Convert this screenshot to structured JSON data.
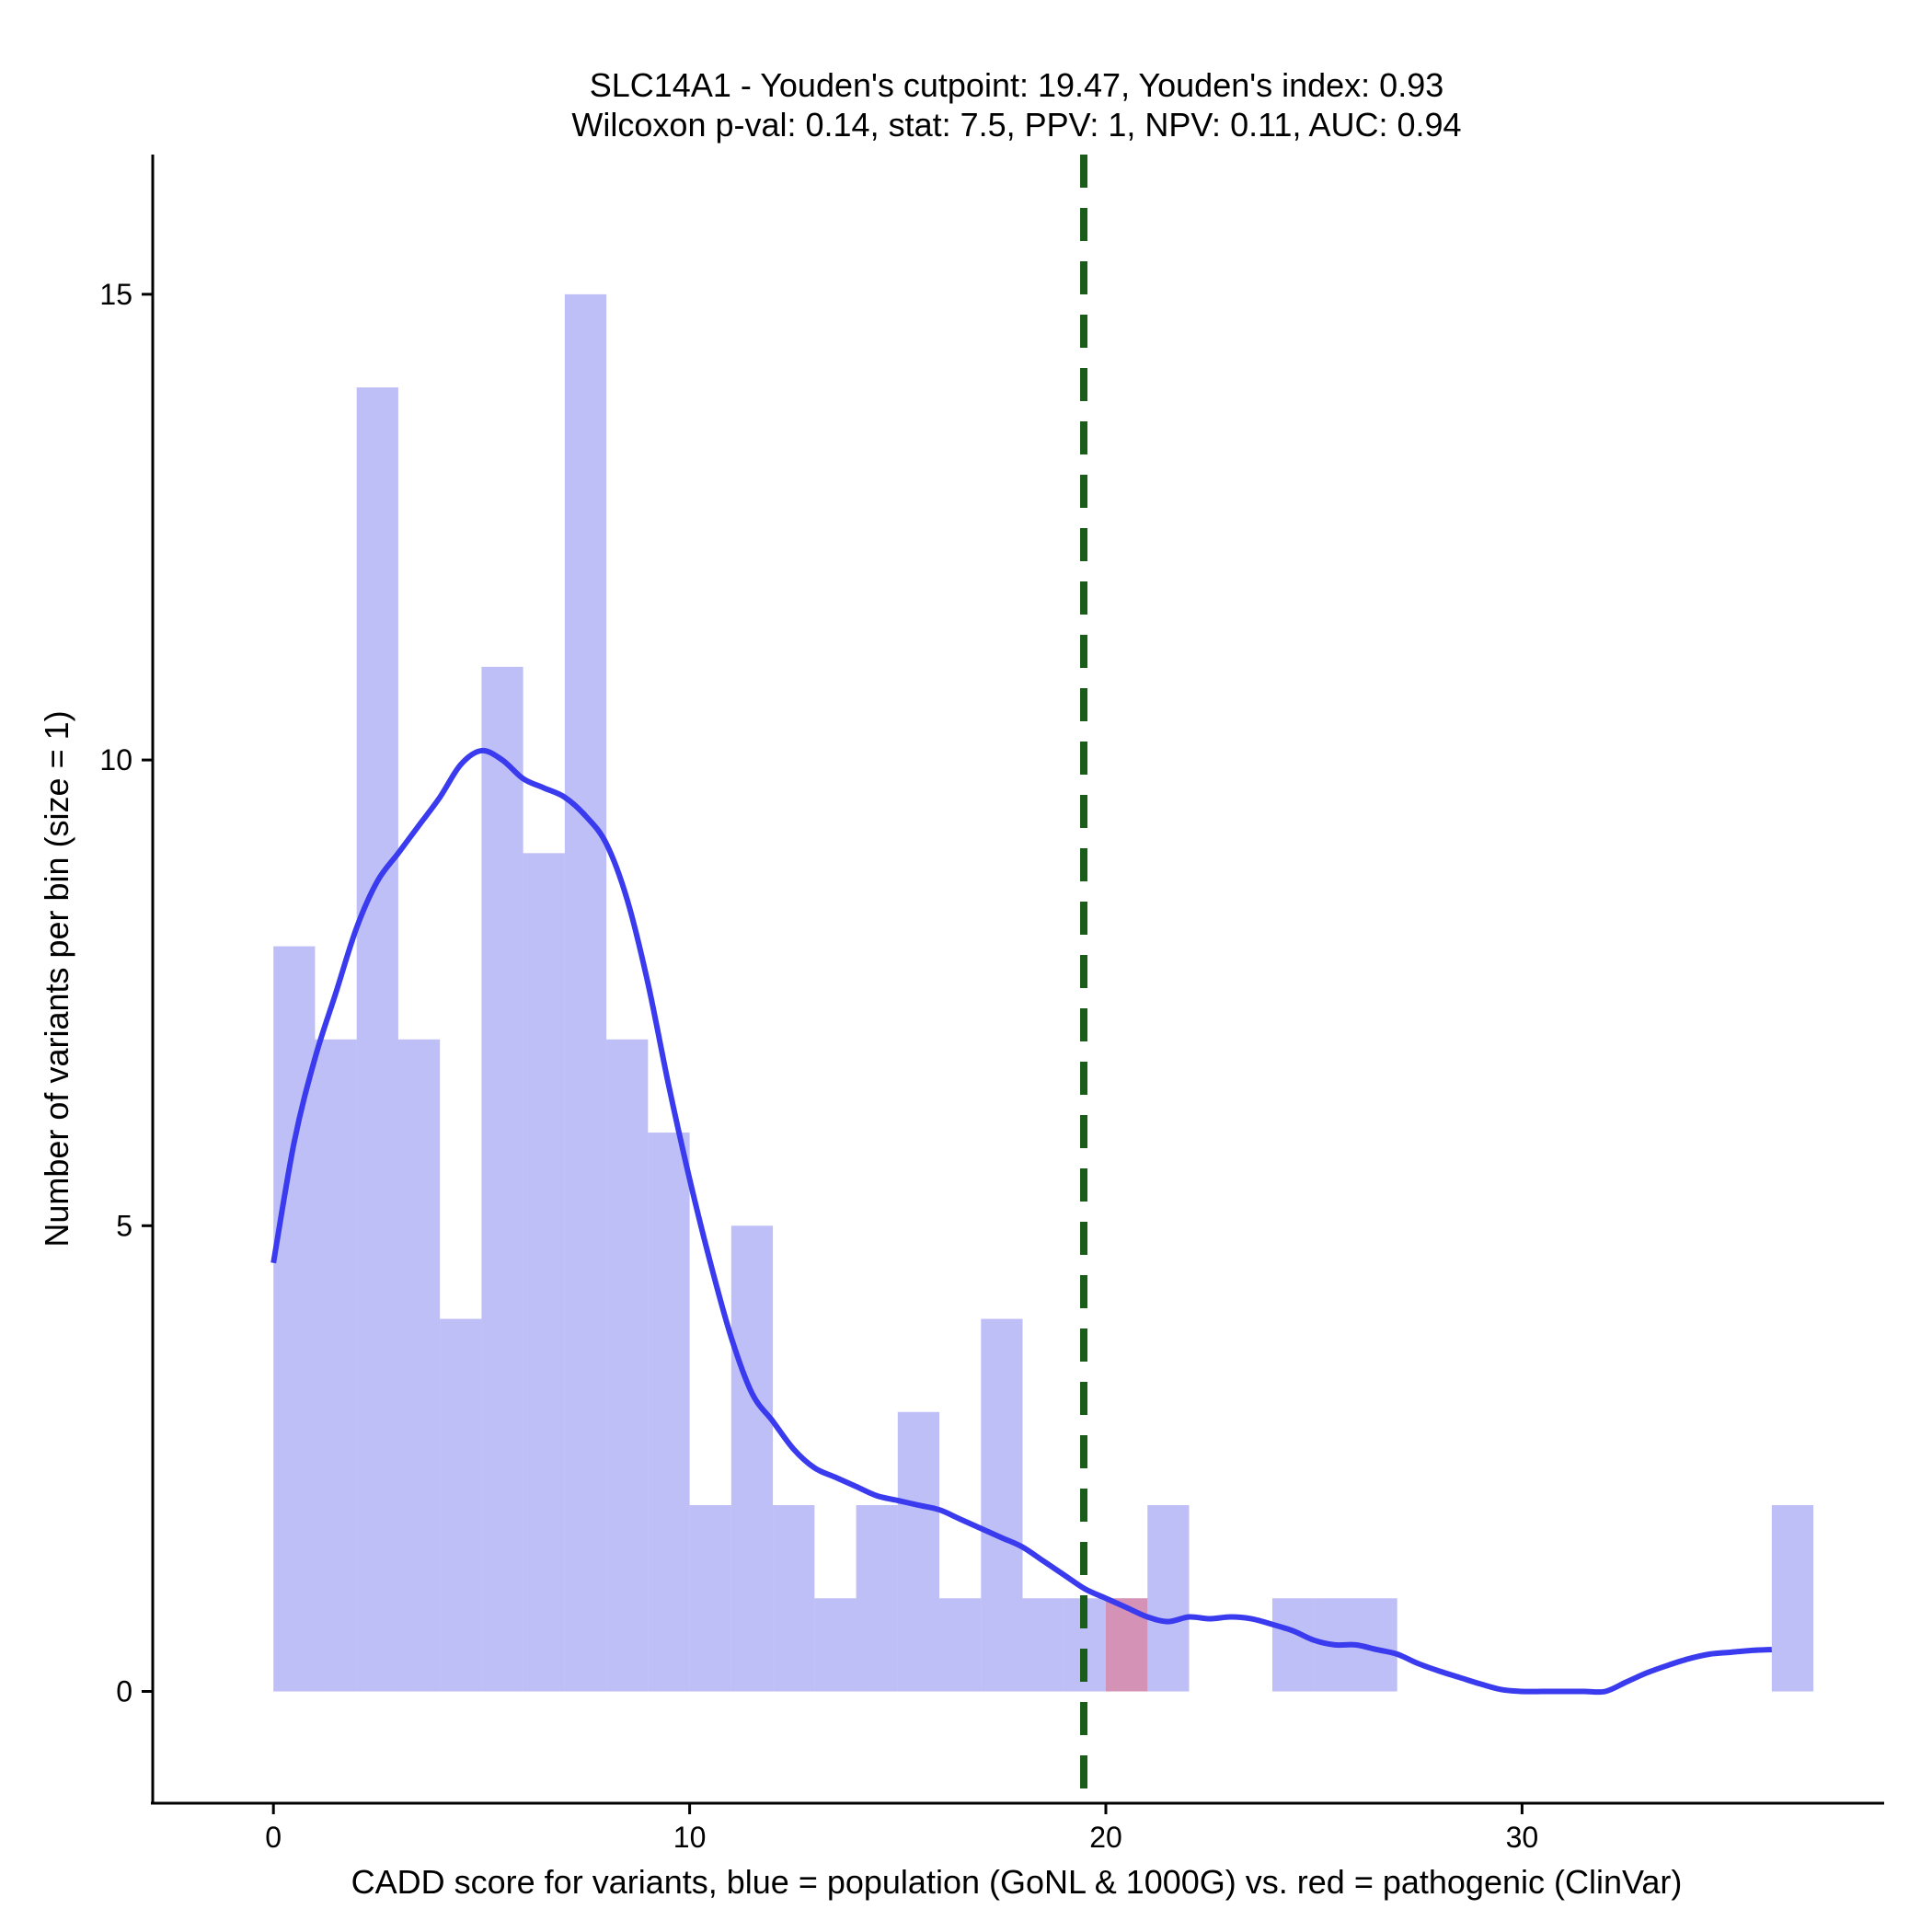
{
  "chart_data": {
    "type": "histogram",
    "title_line1": "SLC14A1 - Youden's cutpoint: 19.47, Youden's index: 0.93",
    "title_line2": "Wilcoxon p-val: 0.14, stat: 7.5, PPV: 1, NPV: 0.11, AUC: 0.94",
    "xlabel": "CADD score for variants, blue = population (GoNL & 1000G) vs. red = pathogenic (ClinVar)",
    "ylabel": "Number of variants per bin (size = 1)",
    "xlim": [
      -2.9,
      38.7
    ],
    "ylim": [
      -1.2,
      16.5
    ],
    "x_ticks": [
      0,
      10,
      20,
      30
    ],
    "y_ticks": [
      0,
      5,
      10,
      15
    ],
    "bin_width": 1,
    "series": [
      {
        "name": "population (GoNL & 1000G)",
        "color": "#8080f0",
        "opacity": 0.5,
        "bins": [
          {
            "x": 0,
            "count": 8
          },
          {
            "x": 1,
            "count": 7
          },
          {
            "x": 2,
            "count": 14
          },
          {
            "x": 3,
            "count": 7
          },
          {
            "x": 4,
            "count": 4
          },
          {
            "x": 5,
            "count": 11
          },
          {
            "x": 6,
            "count": 9
          },
          {
            "x": 7,
            "count": 15
          },
          {
            "x": 8,
            "count": 7
          },
          {
            "x": 9,
            "count": 6
          },
          {
            "x": 10,
            "count": 2
          },
          {
            "x": 11,
            "count": 5
          },
          {
            "x": 12,
            "count": 2
          },
          {
            "x": 13,
            "count": 1
          },
          {
            "x": 14,
            "count": 2
          },
          {
            "x": 15,
            "count": 3
          },
          {
            "x": 16,
            "count": 1
          },
          {
            "x": 17,
            "count": 4
          },
          {
            "x": 18,
            "count": 1
          },
          {
            "x": 19,
            "count": 1
          },
          {
            "x": 20,
            "count": 1
          },
          {
            "x": 21,
            "count": 2
          },
          {
            "x": 24,
            "count": 1
          },
          {
            "x": 25,
            "count": 1
          },
          {
            "x": 26,
            "count": 1
          },
          {
            "x": 36,
            "count": 2
          }
        ]
      },
      {
        "name": "pathogenic (ClinVar)",
        "color": "#ff4040",
        "opacity": 0.35,
        "bins": [
          {
            "x": 20,
            "count": 1
          }
        ]
      }
    ],
    "density_curve": {
      "name": "population density",
      "color": "#3a3aee",
      "x": [
        0,
        0.5,
        1,
        1.5,
        2,
        2.5,
        3,
        3.5,
        4,
        4.5,
        5,
        5.5,
        6,
        6.5,
        7,
        7.5,
        8,
        8.5,
        9,
        9.5,
        10,
        10.5,
        11,
        11.5,
        12,
        12.5,
        13,
        13.5,
        14,
        14.5,
        15,
        15.5,
        16,
        16.5,
        17,
        17.5,
        18,
        18.5,
        19,
        19.5,
        20,
        20.5,
        21,
        21.5,
        22,
        22.5,
        23,
        23.5,
        24,
        24.5,
        25,
        25.5,
        26,
        26.5,
        27,
        27.5,
        28,
        28.5,
        29,
        29.5,
        30,
        30.5,
        31,
        31.5,
        32,
        32.5,
        33,
        33.5,
        34,
        34.5,
        35,
        35.5,
        36
      ],
      "y": [
        4.6,
        5.9,
        6.8,
        7.5,
        8.2,
        8.7,
        9.0,
        9.3,
        9.6,
        9.95,
        10.1,
        10.0,
        9.8,
        9.7,
        9.6,
        9.4,
        9.1,
        8.5,
        7.6,
        6.5,
        5.5,
        4.6,
        3.8,
        3.2,
        2.9,
        2.6,
        2.4,
        2.3,
        2.2,
        2.1,
        2.05,
        2.0,
        1.95,
        1.85,
        1.75,
        1.65,
        1.55,
        1.4,
        1.25,
        1.1,
        1.0,
        0.9,
        0.8,
        0.75,
        0.8,
        0.78,
        0.8,
        0.78,
        0.72,
        0.65,
        0.55,
        0.5,
        0.5,
        0.45,
        0.4,
        0.3,
        0.22,
        0.15,
        0.08,
        0.02,
        0.0,
        0.0,
        0.0,
        0.0,
        0.0,
        0.1,
        0.2,
        0.28,
        0.35,
        0.4,
        0.42,
        0.44,
        0.45
      ]
    },
    "cutpoint": {
      "label": "Youden's cutpoint",
      "x": 19.47,
      "color": "#1a5c1a"
    }
  }
}
